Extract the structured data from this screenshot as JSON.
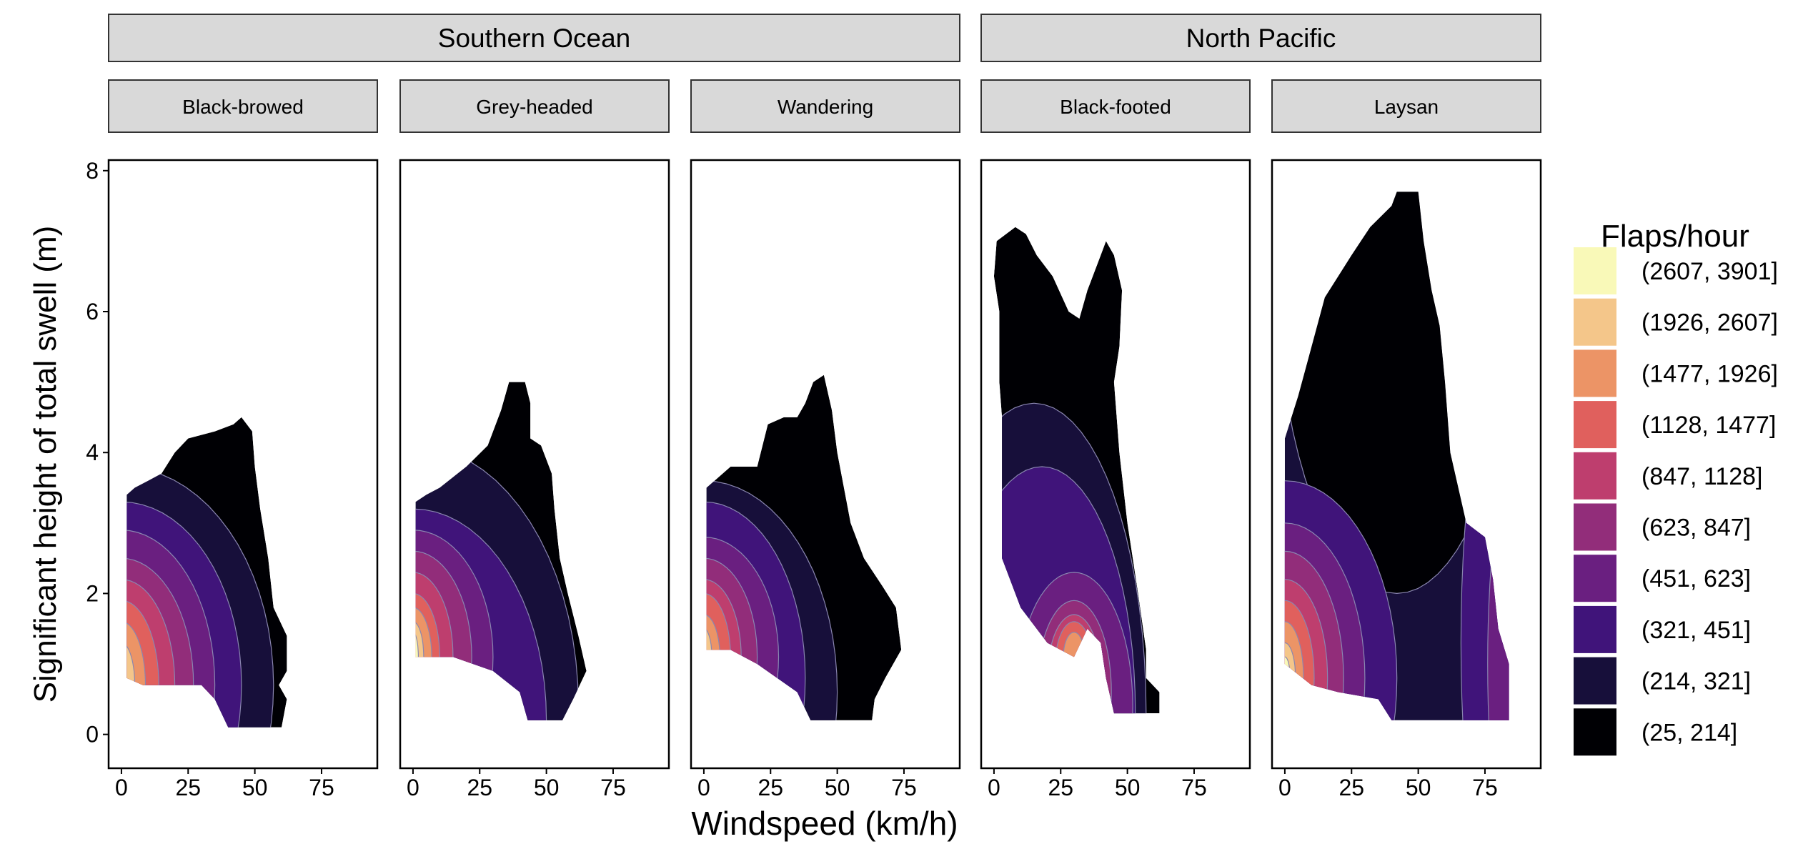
{
  "chart_data": {
    "type": "heatmap",
    "subtype": "faceted filled contour",
    "xlabel": "Windspeed (km/h)",
    "ylabel": "Significant height of total swell (m)",
    "xlim": [
      -4.8,
      95.9
    ],
    "ylim": [
      -0.48,
      8.15
    ],
    "xticks": [
      0,
      25,
      50,
      75
    ],
    "yticks": [
      0,
      2,
      4,
      6,
      8
    ],
    "legend": {
      "title": "Flaps/hour",
      "placement": "right",
      "bands": [
        {
          "label": "(2607, 3901]",
          "color": "#f9f9b8"
        },
        {
          "label": "(1926, 2607]",
          "color": "#f4c68a"
        },
        {
          "label": "(1477, 1926]",
          "color": "#ec9466"
        },
        {
          "label": "(1128, 1477]",
          "color": "#e0605d"
        },
        {
          "label": "(847, 1128]",
          "color": "#be3e6e"
        },
        {
          "label": "(623, 847]",
          "color": "#922d7a"
        },
        {
          "label": "(451, 623]",
          "color": "#6a1f80"
        },
        {
          "label": "(321, 451]",
          "color": "#40147a"
        },
        {
          "label": "(214, 321]",
          "color": "#170f3a"
        },
        {
          "label": "(25, 214]",
          "color": "#000004"
        }
      ]
    },
    "groups": [
      {
        "label": "Southern Ocean",
        "panels": [
          0,
          1,
          2
        ]
      },
      {
        "label": "North Pacific",
        "panels": [
          3,
          4
        ]
      }
    ],
    "panels": [
      {
        "label": "Black-browed",
        "base_band": "(25, 214]",
        "domain": [
          [
            2,
            0.8
          ],
          [
            2,
            3.4
          ],
          [
            5,
            3.5
          ],
          [
            10,
            3.6
          ],
          [
            15,
            3.7
          ],
          [
            20,
            4.0
          ],
          [
            25,
            4.2
          ],
          [
            35,
            4.3
          ],
          [
            42,
            4.4
          ],
          [
            45,
            4.5
          ],
          [
            49,
            4.3
          ],
          [
            50,
            3.8
          ],
          [
            52,
            3.2
          ],
          [
            55,
            2.5
          ],
          [
            57,
            1.8
          ],
          [
            62,
            1.4
          ],
          [
            62,
            0.9
          ],
          [
            59,
            0.7
          ],
          [
            62,
            0.5
          ],
          [
            60,
            0.1
          ],
          [
            40,
            0.1
          ],
          [
            35,
            0.5
          ],
          [
            30,
            0.7
          ],
          [
            15,
            0.7
          ],
          [
            8,
            0.7
          ]
        ],
        "contours": [
          {
            "band": "(214, 321]",
            "center": [
              0,
              0.7
            ],
            "radii": [
              57,
              3.1
            ]
          },
          {
            "band": "(321, 451]",
            "center": [
              0,
              0.7
            ],
            "radii": [
              45,
              2.6
            ]
          },
          {
            "band": "(451, 623]",
            "center": [
              0,
              0.7
            ],
            "radii": [
              35,
              2.2
            ]
          },
          {
            "band": "(623, 847]",
            "center": [
              0,
              0.7
            ],
            "radii": [
              27,
              1.8
            ]
          },
          {
            "band": "(847, 1128]",
            "center": [
              0,
              0.7
            ],
            "radii": [
              20,
              1.5
            ]
          },
          {
            "band": "(1128, 1477]",
            "center": [
              0,
              0.7
            ],
            "radii": [
              14,
              1.2
            ]
          },
          {
            "band": "(1477, 1926]",
            "center": [
              0,
              0.7
            ],
            "radii": [
              9,
              0.9
            ]
          },
          {
            "band": "(1926, 2607]",
            "center": [
              0,
              0.7
            ],
            "radii": [
              5,
              0.6
            ]
          }
        ]
      },
      {
        "label": "Grey-headed",
        "base_band": "(25, 214]",
        "domain": [
          [
            1,
            1.1
          ],
          [
            1,
            3.3
          ],
          [
            5,
            3.4
          ],
          [
            10,
            3.5
          ],
          [
            20,
            3.8
          ],
          [
            28,
            4.1
          ],
          [
            33,
            4.6
          ],
          [
            36,
            5.0
          ],
          [
            42,
            5.0
          ],
          [
            44,
            4.7
          ],
          [
            44,
            4.2
          ],
          [
            48,
            4.1
          ],
          [
            52,
            3.7
          ],
          [
            53,
            3.2
          ],
          [
            55,
            2.5
          ],
          [
            58,
            2.0
          ],
          [
            62,
            1.4
          ],
          [
            65,
            0.9
          ],
          [
            60,
            0.5
          ],
          [
            56,
            0.2
          ],
          [
            43,
            0.2
          ],
          [
            40,
            0.6
          ],
          [
            30,
            0.9
          ],
          [
            15,
            1.1
          ],
          [
            5,
            1.1
          ]
        ],
        "contours": [
          {
            "band": "(214, 321]",
            "center": [
              0,
              0.4
            ],
            "radii": [
              62,
              3.7
            ]
          },
          {
            "band": "(321, 451]",
            "center": [
              0,
              0.2
            ],
            "radii": [
              50,
              3.0
            ]
          },
          {
            "band": "(451, 623]",
            "center": [
              0,
              1.1
            ],
            "radii": [
              30,
              1.8
            ]
          },
          {
            "band": "(623, 847]",
            "center": [
              0,
              1.1
            ],
            "radii": [
              22,
              1.5
            ]
          },
          {
            "band": "(847, 1128]",
            "center": [
              0,
              1.1
            ],
            "radii": [
              15,
              1.2
            ]
          },
          {
            "band": "(1128, 1477]",
            "center": [
              0,
              1.1
            ],
            "radii": [
              10,
              0.9
            ]
          },
          {
            "band": "(1477, 1926]",
            "center": [
              0,
              1.1
            ],
            "radii": [
              7,
              0.7
            ]
          },
          {
            "band": "(1926, 2607]",
            "center": [
              0,
              1.1
            ],
            "radii": [
              4,
              0.5
            ]
          },
          {
            "band": "(2607, 3901]",
            "center": [
              0,
              1.1
            ],
            "radii": [
              2,
              0.35
            ]
          }
        ]
      },
      {
        "label": "Wandering",
        "base_band": "(25, 214]",
        "domain": [
          [
            1,
            1.2
          ],
          [
            1,
            3.5
          ],
          [
            10,
            3.8
          ],
          [
            20,
            3.8
          ],
          [
            24,
            4.4
          ],
          [
            30,
            4.5
          ],
          [
            35,
            4.5
          ],
          [
            38,
            4.7
          ],
          [
            41,
            5.0
          ],
          [
            45,
            5.1
          ],
          [
            48,
            4.6
          ],
          [
            50,
            4.0
          ],
          [
            55,
            3.0
          ],
          [
            60,
            2.5
          ],
          [
            67,
            2.1
          ],
          [
            72,
            1.8
          ],
          [
            74,
            1.2
          ],
          [
            68,
            0.8
          ],
          [
            64,
            0.5
          ],
          [
            63,
            0.2
          ],
          [
            40,
            0.2
          ],
          [
            35,
            0.6
          ],
          [
            20,
            1.0
          ],
          [
            10,
            1.2
          ]
        ],
        "contours": [
          {
            "band": "(214, 321]",
            "center": [
              0,
              0.6
            ],
            "radii": [
              50,
              3.0
            ]
          },
          {
            "band": "(321, 451]",
            "center": [
              0,
              0.8
            ],
            "radii": [
              38,
              2.5
            ]
          },
          {
            "band": "(451, 623]",
            "center": [
              0,
              1.1
            ],
            "radii": [
              28,
              1.7
            ]
          },
          {
            "band": "(623, 847]",
            "center": [
              0,
              1.1
            ],
            "radii": [
              20,
              1.4
            ]
          },
          {
            "band": "(847, 1128]",
            "center": [
              0,
              1.1
            ],
            "radii": [
              14,
              1.1
            ]
          },
          {
            "band": "(1128, 1477]",
            "center": [
              0,
              1.1
            ],
            "radii": [
              10,
              0.9
            ]
          },
          {
            "band": "(1477, 1926]",
            "center": [
              0,
              1.1
            ],
            "radii": [
              6,
              0.6
            ]
          },
          {
            "band": "(1926, 2607]",
            "center": [
              0,
              1.1
            ],
            "radii": [
              3,
              0.4
            ]
          }
        ]
      },
      {
        "label": "Black-footed",
        "base_band": "(25, 214]",
        "domain": [
          [
            3,
            2.5
          ],
          [
            3,
            4.5
          ],
          [
            2,
            5.0
          ],
          [
            2,
            6.0
          ],
          [
            0,
            6.5
          ],
          [
            1,
            7.0
          ],
          [
            8,
            7.2
          ],
          [
            12,
            7.1
          ],
          [
            16,
            6.8
          ],
          [
            22,
            6.5
          ],
          [
            28,
            6.0
          ],
          [
            32,
            5.9
          ],
          [
            35,
            6.3
          ],
          [
            40,
            6.8
          ],
          [
            42,
            7.0
          ],
          [
            45,
            6.8
          ],
          [
            48,
            6.3
          ],
          [
            47,
            5.5
          ],
          [
            45,
            5.0
          ],
          [
            47,
            4.0
          ],
          [
            50,
            3.0
          ],
          [
            54,
            2.0
          ],
          [
            57,
            1.2
          ],
          [
            57,
            0.8
          ],
          [
            62,
            0.6
          ],
          [
            62,
            0.3
          ],
          [
            45,
            0.3
          ],
          [
            42,
            0.8
          ],
          [
            40,
            1.3
          ],
          [
            35,
            1.5
          ],
          [
            30,
            1.1
          ],
          [
            20,
            1.3
          ],
          [
            10,
            1.8
          ],
          [
            5,
            2.3
          ]
        ],
        "contours": [
          {
            "band": "(214, 321]",
            "center": [
              15,
              0.3
            ],
            "radii": [
              42,
              4.4
            ]
          },
          {
            "band": "(321, 451]",
            "center": [
              18,
              0.3
            ],
            "radii": [
              35,
              3.5
            ]
          },
          {
            "band": "(451, 623]",
            "center": [
              30,
              0.4
            ],
            "radii": [
              22,
              1.9
            ]
          },
          {
            "band": "(623, 847]",
            "center": [
              30,
              0.6
            ],
            "radii": [
              14,
              1.3
            ]
          },
          {
            "band": "(847, 1128]",
            "center": [
              30,
              0.8
            ],
            "radii": [
              10,
              0.9
            ]
          },
          {
            "band": "(1128, 1477]",
            "center": [
              30,
              1.0
            ],
            "radii": [
              7,
              0.6
            ]
          },
          {
            "band": "(1477, 1926]",
            "center": [
              30,
              1.1
            ],
            "radii": [
              4,
              0.35
            ]
          }
        ]
      },
      {
        "label": "Laysan",
        "base_band": "(214, 321]",
        "domain": [
          [
            0,
            1.0
          ],
          [
            0,
            4.2
          ],
          [
            5,
            4.8
          ],
          [
            10,
            5.5
          ],
          [
            15,
            6.2
          ],
          [
            25,
            6.8
          ],
          [
            32,
            7.2
          ],
          [
            40,
            7.5
          ],
          [
            42,
            7.7
          ],
          [
            50,
            7.7
          ],
          [
            52,
            7.0
          ],
          [
            55,
            6.3
          ],
          [
            58,
            5.8
          ],
          [
            60,
            5.0
          ],
          [
            62,
            4.0
          ],
          [
            68,
            3.0
          ],
          [
            75,
            2.8
          ],
          [
            78,
            2.2
          ],
          [
            80,
            1.5
          ],
          [
            84,
            1.0
          ],
          [
            84,
            0.2
          ],
          [
            40,
            0.2
          ],
          [
            35,
            0.5
          ],
          [
            20,
            0.6
          ],
          [
            10,
            0.7
          ]
        ],
        "contours": [
          {
            "band": "(25, 214]",
            "center": [
              42,
              6.6
            ],
            "radii": [
              45,
              4.6
            ]
          },
          {
            "band": "(321, 451]",
            "center": [
              88,
              1.3
            ],
            "radii": [
              22,
              4.5
            ]
          },
          {
            "band": "(451, 623]",
            "center": [
              90,
              1.0
            ],
            "radii": [
              14,
              3.3
            ]
          },
          {
            "band": "(321, 451]",
            "center": [
              0,
              0.8
            ],
            "radii": [
              42,
              2.8
            ]
          },
          {
            "band": "(451, 623]",
            "center": [
              0,
              0.8
            ],
            "radii": [
              30,
              2.2
            ]
          },
          {
            "band": "(623, 847]",
            "center": [
              0,
              0.8
            ],
            "radii": [
              22,
              1.8
            ]
          },
          {
            "band": "(847, 1128]",
            "center": [
              0,
              0.8
            ],
            "radii": [
              16,
              1.4
            ]
          },
          {
            "band": "(1128, 1477]",
            "center": [
              0,
              0.8
            ],
            "radii": [
              11,
              1.1
            ]
          },
          {
            "band": "(1477, 1926]",
            "center": [
              0,
              0.8
            ],
            "radii": [
              7,
              0.8
            ]
          },
          {
            "band": "(1926, 2607]",
            "center": [
              0,
              0.8
            ],
            "radii": [
              4,
              0.5
            ]
          },
          {
            "band": "(2607, 3901]",
            "center": [
              0,
              0.8
            ],
            "radii": [
              2,
              0.3
            ]
          }
        ]
      }
    ]
  }
}
